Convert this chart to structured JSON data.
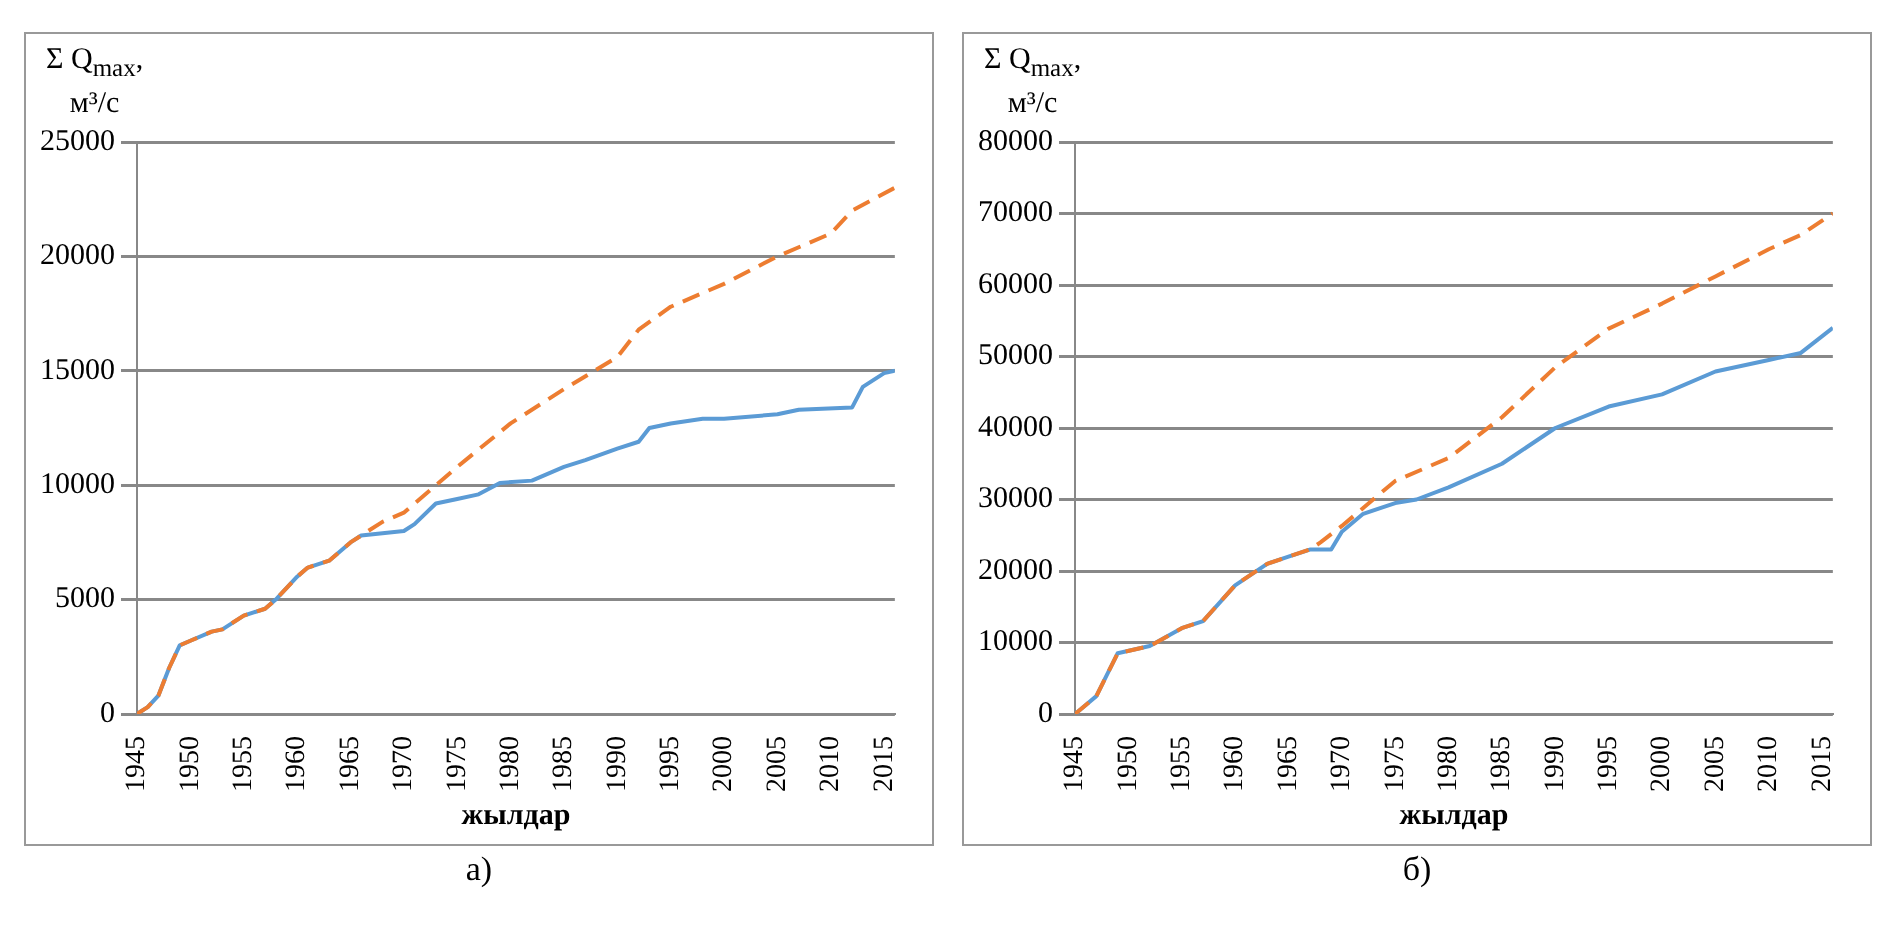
{
  "chart_data": [
    {
      "type": "line",
      "title": "а)",
      "xlabel": "жылдар",
      "ylabel": "Σ Q$_{max}$, м³/с",
      "xlim": [
        1945,
        2016
      ],
      "xticks": [
        1945,
        1950,
        1955,
        1960,
        1965,
        1970,
        1975,
        1980,
        1985,
        1990,
        1995,
        2000,
        2005,
        2010,
        2015
      ],
      "ylim": [
        0,
        25000
      ],
      "yticks": [
        0,
        5000,
        10000,
        15000,
        20000,
        25000
      ],
      "grid": "y",
      "legend": false,
      "marker": "none",
      "series": [
        {
          "color": "#5b9bd5",
          "line_style": "solid",
          "x": [
            1945,
            1946,
            1947,
            1948,
            1949,
            1950,
            1952,
            1953,
            1955,
            1957,
            1958,
            1960,
            1961,
            1963,
            1965,
            1966,
            1968,
            1970,
            1971,
            1973,
            1975,
            1977,
            1979,
            1982,
            1985,
            1987,
            1990,
            1992,
            1993,
            1995,
            1998,
            2000,
            2005,
            2007,
            2012,
            2013,
            2015,
            2016
          ],
          "values": [
            0,
            300,
            800,
            2000,
            3000,
            3200,
            3600,
            3700,
            4300,
            4600,
            5000,
            6000,
            6400,
            6700,
            7500,
            7800,
            7900,
            8000,
            8300,
            9200,
            9400,
            9600,
            10100,
            10200,
            10800,
            11100,
            11600,
            11900,
            12500,
            12700,
            12900,
            12900,
            13100,
            13300,
            13400,
            14300,
            14900,
            15000
          ]
        },
        {
          "color": "#ed7d31",
          "line_style": "dashed",
          "x": [
            1945,
            1946,
            1947,
            1948,
            1949,
            1950,
            1952,
            1953,
            1955,
            1957,
            1958,
            1960,
            1961,
            1963,
            1965,
            1966,
            1968,
            1970,
            1973,
            1975,
            1980,
            1985,
            1990,
            1992,
            1995,
            2000,
            2005,
            2010,
            2012,
            2016
          ],
          "values": [
            0,
            300,
            800,
            2000,
            3000,
            3200,
            3600,
            3700,
            4300,
            4600,
            5000,
            6000,
            6400,
            6700,
            7500,
            7800,
            8400,
            8800,
            10000,
            10800,
            12700,
            14200,
            15600,
            16800,
            17800,
            18800,
            20000,
            21000,
            22000,
            23000
          ]
        }
      ]
    },
    {
      "type": "line",
      "title": "б)",
      "xlabel": "жылдар",
      "ylabel": "Σ Q$_{max}$, м³/с",
      "xlim": [
        1945,
        2016
      ],
      "xticks": [
        1945,
        1950,
        1955,
        1960,
        1965,
        1970,
        1975,
        1980,
        1985,
        1990,
        1995,
        2000,
        2005,
        2010,
        2015
      ],
      "ylim": [
        0,
        80000
      ],
      "yticks": [
        0,
        10000,
        20000,
        30000,
        40000,
        50000,
        60000,
        70000,
        80000
      ],
      "grid": "y",
      "legend": false,
      "marker": "none",
      "series": [
        {
          "color": "#5b9bd5",
          "line_style": "solid",
          "x": [
            1945,
            1947,
            1949,
            1952,
            1955,
            1957,
            1960,
            1963,
            1965,
            1967,
            1969,
            1970,
            1972,
            1975,
            1977,
            1980,
            1985,
            1990,
            1995,
            2000,
            2005,
            2010,
            2013,
            2016
          ],
          "values": [
            0,
            2500,
            8500,
            9500,
            12000,
            13000,
            18000,
            21000,
            22000,
            23000,
            23000,
            25500,
            28000,
            29500,
            30000,
            31700,
            35000,
            40000,
            43000,
            44700,
            47900,
            49500,
            50500,
            54000
          ]
        },
        {
          "color": "#ed7d31",
          "line_style": "dashed",
          "x": [
            1945,
            1947,
            1949,
            1952,
            1955,
            1957,
            1960,
            1963,
            1965,
            1967,
            1968,
            1970,
            1975,
            1980,
            1985,
            1990,
            1995,
            2000,
            2005,
            2010,
            2013,
            2016
          ],
          "values": [
            0,
            2500,
            8500,
            9500,
            12000,
            13000,
            18000,
            21000,
            22000,
            23000,
            24000,
            26300,
            32600,
            35800,
            41500,
            48500,
            53900,
            57400,
            61200,
            65000,
            67000,
            70000
          ]
        }
      ]
    }
  ]
}
